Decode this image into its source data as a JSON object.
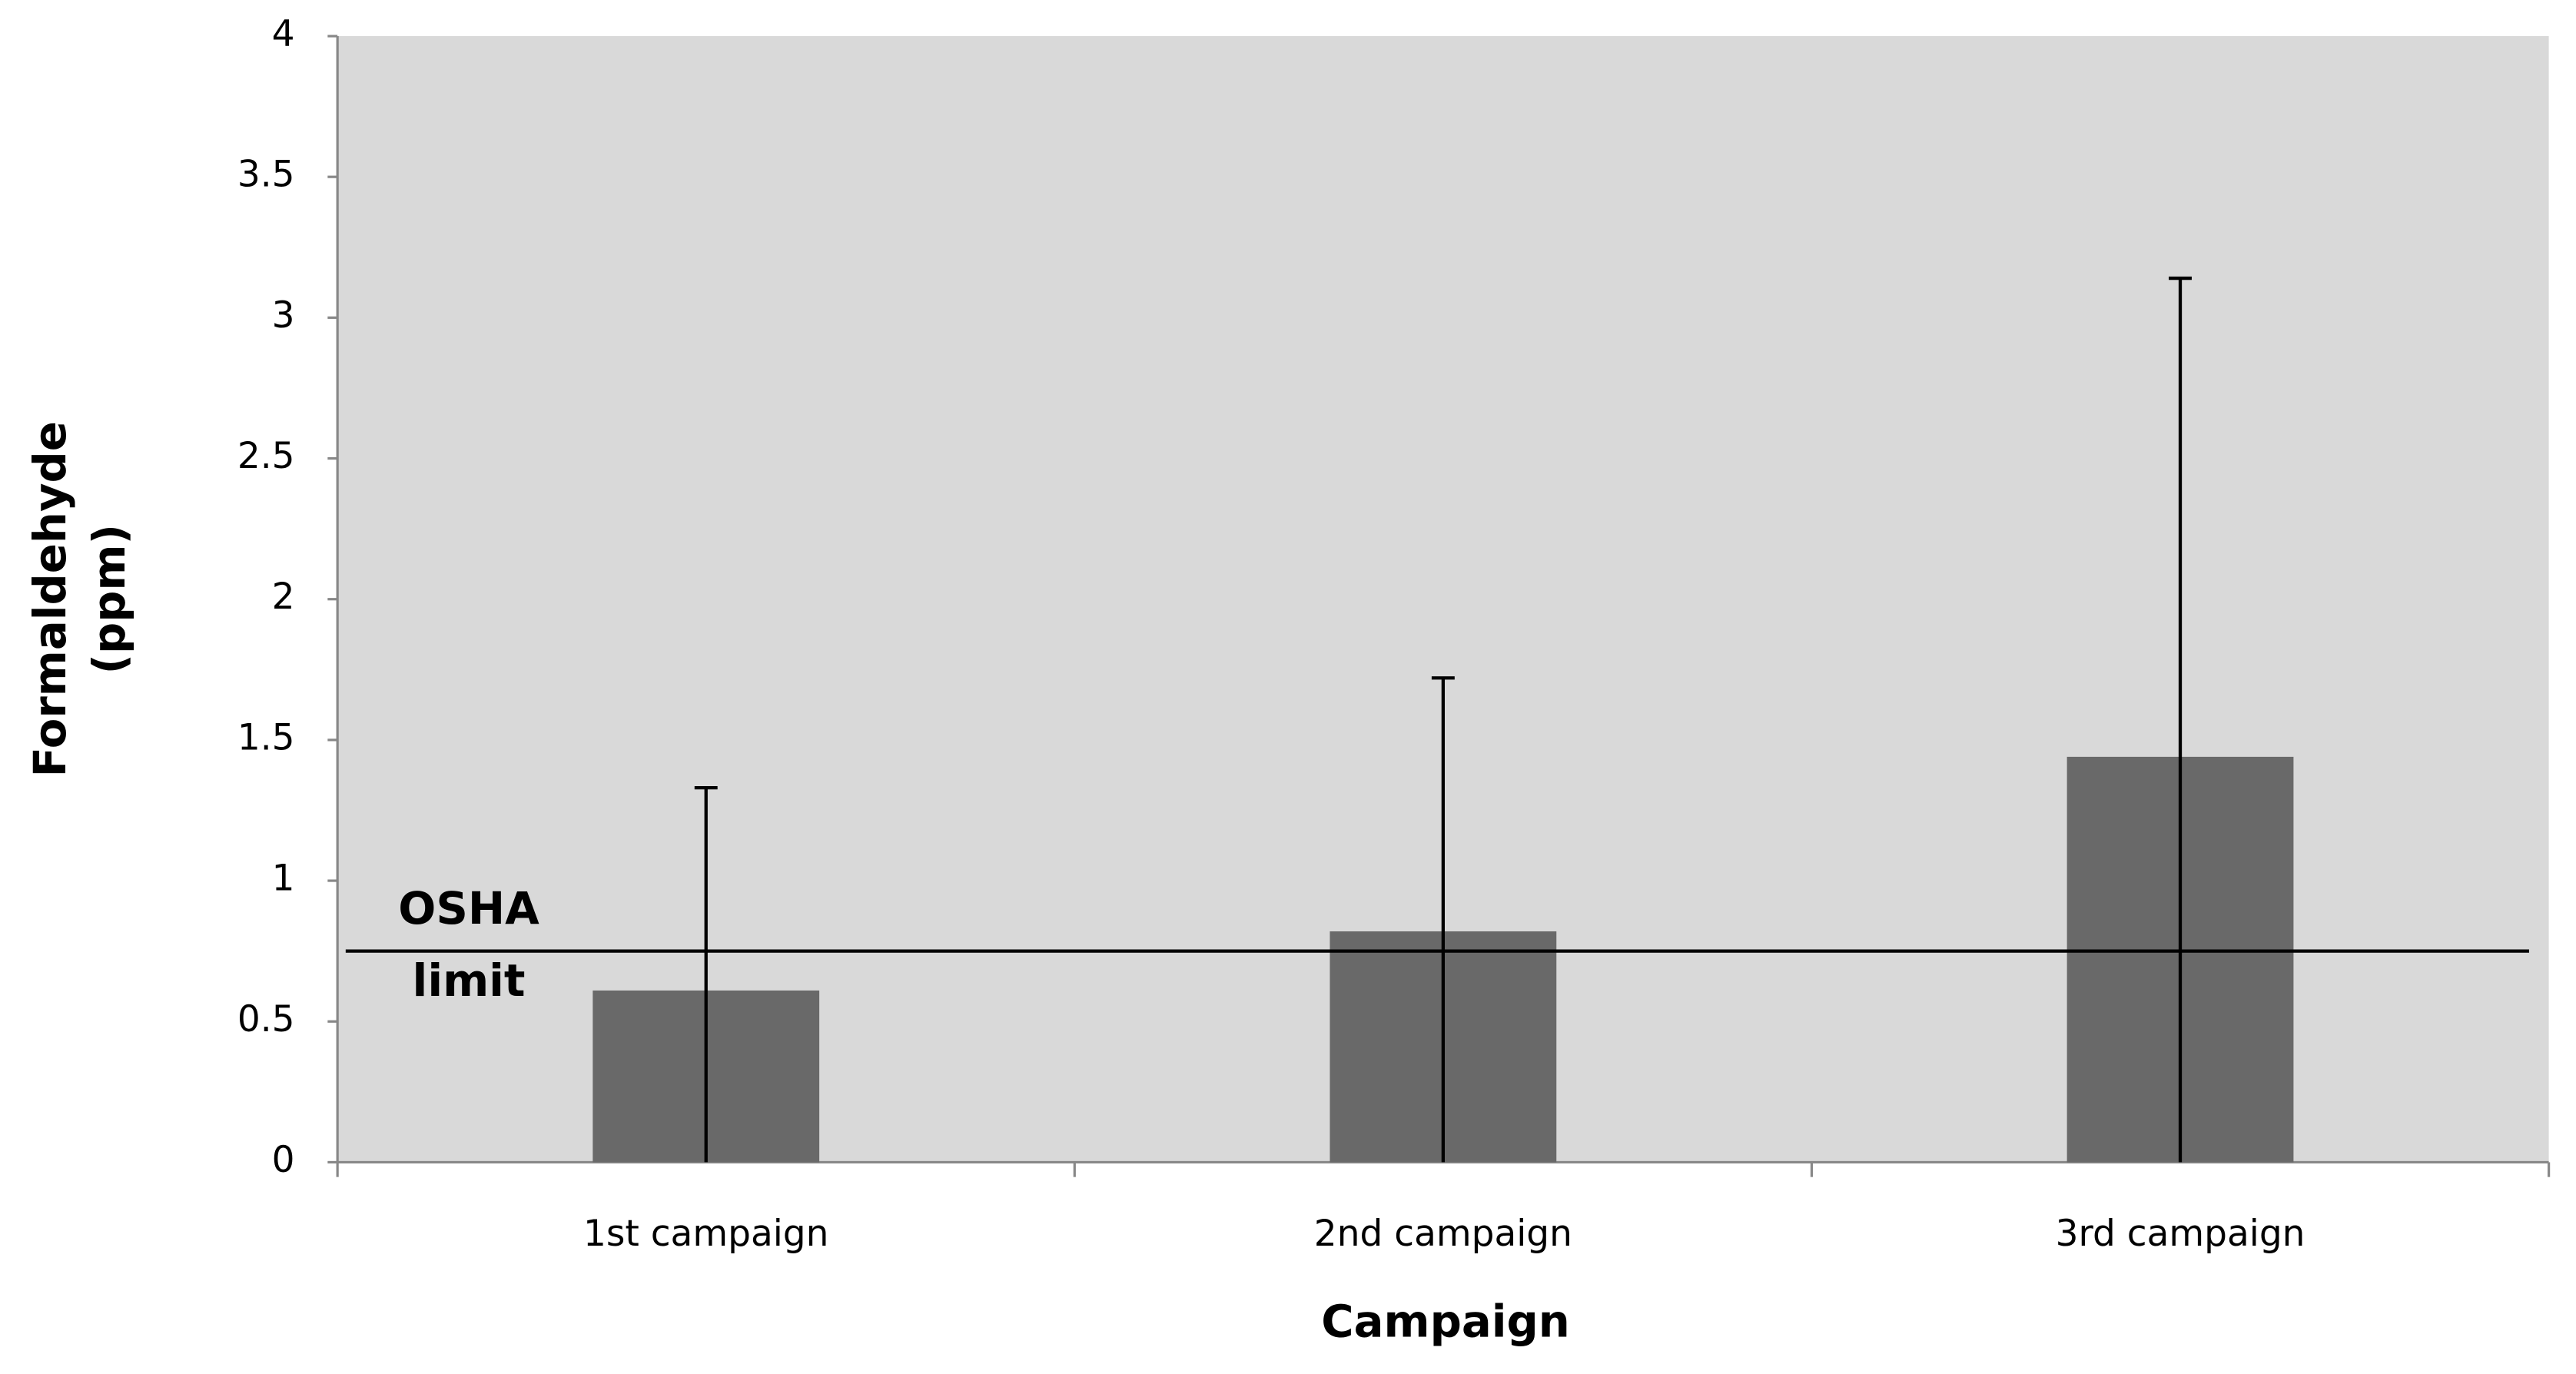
{
  "chart_data": {
    "type": "bar",
    "xlabel": "Campaign",
    "ylabel": [
      "Formaldehyde",
      "(ppm)"
    ],
    "categories": [
      "1st campaign",
      "2nd campaign",
      "3rd campaign"
    ],
    "values": [
      0.61,
      0.82,
      1.44
    ],
    "errors": [
      0.72,
      0.9,
      1.7
    ],
    "color": "#696969",
    "background": "#d9d9d9",
    "ylim": [
      0,
      4
    ],
    "yticks": [
      0,
      0.5,
      1,
      1.5,
      2,
      2.5,
      3,
      3.5,
      4
    ],
    "reference_line": {
      "value": 0.75,
      "label": [
        "OSHA",
        "limit"
      ]
    },
    "grid": false
  }
}
